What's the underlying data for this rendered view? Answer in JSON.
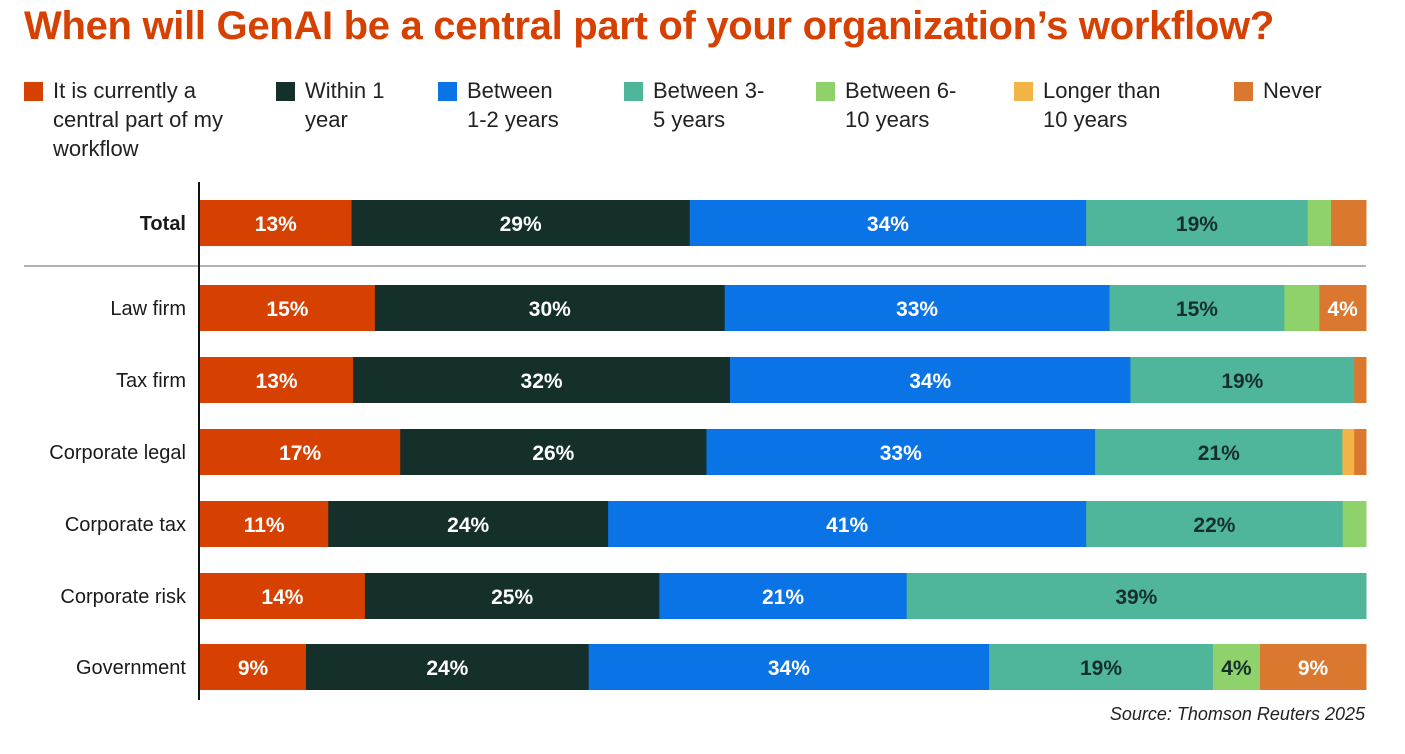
{
  "chart_data": {
    "type": "bar",
    "orientation": "horizontal",
    "stacked": true,
    "title": "When will GenAI be a central part of your organization’s workflow?",
    "categories": [
      "Total",
      "Law firm",
      "Tax firm",
      "Corporate legal",
      "Corporate tax",
      "Corporate risk",
      "Government"
    ],
    "series": [
      {
        "name": "It is currently a central part of my workflow",
        "color": "#d64000",
        "label_color": "#ffffff",
        "values": [
          13,
          15,
          13,
          17,
          11,
          14,
          9
        ]
      },
      {
        "name": "Within 1 year",
        "color": "#15302a",
        "label_color": "#ffffff",
        "values": [
          29,
          30,
          32,
          26,
          24,
          25,
          24
        ]
      },
      {
        "name": "Between 1-2 years",
        "color": "#0a73e6",
        "label_color": "#ffffff",
        "values": [
          34,
          33,
          34,
          33,
          41,
          21,
          34
        ]
      },
      {
        "name": "Between 3-5 years",
        "color": "#4fb59b",
        "label_color": "#15302a",
        "values": [
          19,
          15,
          19,
          21,
          22,
          39,
          19
        ]
      },
      {
        "name": "Between 6-10 years",
        "color": "#8fd16a",
        "label_color": "#15302a",
        "values": [
          2,
          3,
          0,
          0,
          2,
          0,
          4
        ]
      },
      {
        "name": "Longer than 10 years",
        "color": "#f2b446",
        "label_color": "#15302a",
        "values": [
          0,
          0,
          0,
          1,
          0,
          0,
          0
        ]
      },
      {
        "name": "Never",
        "color": "#d9782e",
        "label_color": "#ffffff",
        "values": [
          3,
          4,
          1,
          1,
          0,
          0,
          9
        ]
      }
    ],
    "data_labels": [
      [
        "13%",
        "29%",
        "34%",
        "19%",
        "",
        "",
        ""
      ],
      [
        "15%",
        "30%",
        "33%",
        "15%",
        "",
        "",
        "4%"
      ],
      [
        "13%",
        "32%",
        "34%",
        "19%",
        "",
        "",
        ""
      ],
      [
        "17%",
        "26%",
        "33%",
        "21%",
        "",
        "",
        ""
      ],
      [
        "11%",
        "24%",
        "41%",
        "22%",
        "",
        "",
        ""
      ],
      [
        "14%",
        "25%",
        "21%",
        "39%",
        "",
        "",
        ""
      ],
      [
        "9%",
        "24%",
        "34%",
        "19%",
        "4%",
        "",
        "9%"
      ]
    ],
    "legend_position": "top",
    "grid": false
  },
  "legend": [
    "It is currently a central part of my workflow",
    "Within 1 year",
    "Between 1-2 years",
    "Between 3-5 years",
    "Between 6-10 years",
    "Longer than 10 years",
    "Never"
  ],
  "source": "Source: Thomson Reuters 2025"
}
